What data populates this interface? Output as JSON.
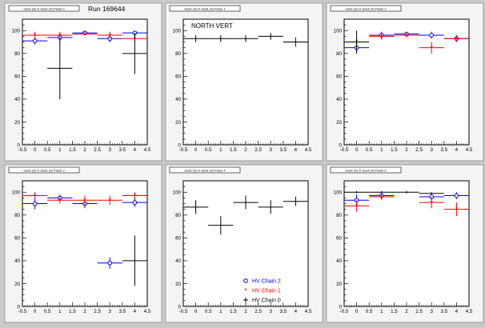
{
  "run_label": "Run 169644",
  "chart_data": [
    {
      "type": "scatter",
      "title": "dow1 (4) O dow1 (4) Panel 0",
      "annotation": "",
      "xlim": [
        -0.5,
        4.5
      ],
      "ylim": [
        0,
        110
      ],
      "xticks": [
        "-0.5",
        "0",
        "0.5",
        "1",
        "1.5",
        "2",
        "2.5",
        "3",
        "3.5",
        "4",
        "4.5"
      ],
      "yticks": [
        "0",
        "20",
        "40",
        "60",
        "80",
        "100"
      ],
      "series": [
        {
          "color": "#0000ff",
          "marker": "circle",
          "points": [
            {
              "x": 0,
              "y": 91,
              "xerr": 0.5,
              "yerr": 3
            },
            {
              "x": 1,
              "y": 94,
              "xerr": 0.5,
              "yerr": 3
            },
            {
              "x": 2,
              "y": 98,
              "xerr": 0.5,
              "yerr": 1
            },
            {
              "x": 3,
              "y": 93,
              "xerr": 0.5,
              "yerr": 3
            },
            {
              "x": 4,
              "y": 98,
              "xerr": 0.5,
              "yerr": 1
            }
          ]
        },
        {
          "color": "#ff0000",
          "marker": "star",
          "points": [
            {
              "x": 0,
              "y": 96,
              "xerr": 0.5,
              "yerr": 3
            },
            {
              "x": 1,
              "y": 96,
              "xerr": 0.5,
              "yerr": 3
            },
            {
              "x": 2,
              "y": 97,
              "xerr": 0.5,
              "yerr": 1
            },
            {
              "x": 3,
              "y": 96,
              "xerr": 0.5,
              "yerr": 3
            },
            {
              "x": 4,
              "y": 93,
              "xerr": 0.5,
              "yerr": 3
            }
          ]
        },
        {
          "color": "#000000",
          "marker": "cross",
          "points": [
            {
              "x": 1,
              "y": 67,
              "xerr": 0.5,
              "yerr": 27
            },
            {
              "x": 4,
              "y": 80,
              "xerr": 0.5,
              "yerr": 18
            }
          ]
        }
      ]
    },
    {
      "type": "scatter",
      "title": "dow1 (4) O dow1 (4) Panel 1",
      "annotation": "NORTH VERT",
      "xlim": [
        -0.5,
        4.5
      ],
      "ylim": [
        0,
        110
      ],
      "xticks": [
        "-0.5",
        "0",
        "0.5",
        "1",
        "1.5",
        "2",
        "2.5",
        "3",
        "3.5",
        "4",
        "4.5"
      ],
      "yticks": [
        "0",
        "20",
        "40",
        "60",
        "80",
        "100"
      ],
      "series": [
        {
          "color": "#000000",
          "marker": "cross",
          "points": [
            {
              "x": 0,
              "y": 93,
              "xerr": 0.5,
              "yerr": 3
            },
            {
              "x": 1,
              "y": 93,
              "xerr": 0.5,
              "yerr": 3
            },
            {
              "x": 2,
              "y": 93,
              "xerr": 0.5,
              "yerr": 3
            },
            {
              "x": 3,
              "y": 95,
              "xerr": 0.5,
              "yerr": 3
            },
            {
              "x": 4,
              "y": 90,
              "xerr": 0.5,
              "yerr": 4
            }
          ]
        }
      ]
    },
    {
      "type": "scatter",
      "title": "dow1 (4) O dow1 (4) Panel 2",
      "annotation": "",
      "xlim": [
        -0.5,
        4.5
      ],
      "ylim": [
        0,
        110
      ],
      "xticks": [
        "-0.5",
        "0",
        "0.5",
        "1",
        "1.5",
        "2",
        "2.5",
        "3",
        "3.5",
        "4",
        "4.5"
      ],
      "yticks": [
        "0",
        "20",
        "40",
        "60",
        "80",
        "100"
      ],
      "series": [
        {
          "color": "#0000ff",
          "marker": "circle",
          "points": [
            {
              "x": 0,
              "y": 85,
              "xerr": 0.5,
              "yerr": 4
            },
            {
              "x": 1,
              "y": 96,
              "xerr": 0.5,
              "yerr": 3
            },
            {
              "x": 2,
              "y": 97,
              "xerr": 0.5,
              "yerr": 2
            },
            {
              "x": 3,
              "y": 96,
              "xerr": 0.5,
              "yerr": 3
            },
            {
              "x": 4,
              "y": 93,
              "xerr": 0.5,
              "yerr": 3
            }
          ]
        },
        {
          "color": "#ff0000",
          "marker": "star",
          "points": [
            {
              "x": 0,
              "y": 90,
              "xerr": 0.5,
              "yerr": 4
            },
            {
              "x": 1,
              "y": 95,
              "xerr": 0.5,
              "yerr": 3
            },
            {
              "x": 2,
              "y": 96,
              "xerr": 0.5,
              "yerr": 2
            },
            {
              "x": 3,
              "y": 85,
              "xerr": 0.5,
              "yerr": 5
            },
            {
              "x": 4,
              "y": 93,
              "xerr": 0.5,
              "yerr": 3
            }
          ]
        },
        {
          "color": "#000000",
          "marker": "cross",
          "points": [
            {
              "x": 0,
              "y": 90,
              "xerr": 0.5,
              "yerr": 10
            }
          ]
        }
      ]
    },
    {
      "type": "scatter",
      "title": "dow1 (4) O dow1 (4) Panel 3",
      "annotation": "",
      "xlim": [
        -0.5,
        4.5
      ],
      "ylim": [
        0,
        110
      ],
      "xticks": [
        "-0.5",
        "0",
        "0.5",
        "1",
        "1.5",
        "2",
        "2.5",
        "3",
        "3.5",
        "4",
        "4.5"
      ],
      "yticks": [
        "0",
        "20",
        "40",
        "60",
        "80",
        "100"
      ],
      "series": [
        {
          "color": "#0000ff",
          "marker": "circle",
          "points": [
            {
              "x": 0,
              "y": 90,
              "xerr": 0.5,
              "yerr": 5
            },
            {
              "x": 1,
              "y": 95,
              "xerr": 0.5,
              "yerr": 3
            },
            {
              "x": 2,
              "y": 90,
              "xerr": 0.5,
              "yerr": 4
            },
            {
              "x": 3,
              "y": 38,
              "xerr": 0.5,
              "yerr": 5
            },
            {
              "x": 4,
              "y": 91,
              "xerr": 0.5,
              "yerr": 4
            }
          ]
        },
        {
          "color": "#ff0000",
          "marker": "star",
          "points": [
            {
              "x": 0,
              "y": 97,
              "xerr": 0.5,
              "yerr": 3
            },
            {
              "x": 1,
              "y": 93,
              "xerr": 0.5,
              "yerr": 3
            },
            {
              "x": 2,
              "y": 93,
              "xerr": 0.5,
              "yerr": 4
            },
            {
              "x": 3,
              "y": 93,
              "xerr": 0.5,
              "yerr": 4
            },
            {
              "x": 4,
              "y": 97,
              "xerr": 0.5,
              "yerr": 3
            }
          ]
        },
        {
          "color": "#000000",
          "marker": "cross",
          "points": [
            {
              "x": 4,
              "y": 40,
              "xerr": 0.5,
              "yerr": 22
            }
          ]
        }
      ]
    },
    {
      "type": "scatter",
      "title": "dow1 (4) O dow1 (4) Panel 4",
      "annotation": "",
      "xlim": [
        -0.5,
        4.5
      ],
      "ylim": [
        0,
        110
      ],
      "xticks": [
        "-0.5",
        "0",
        "0.5",
        "1",
        "1.5",
        "2",
        "2.5",
        "3",
        "3.5",
        "4",
        "4.5"
      ],
      "yticks": [
        "0",
        "20",
        "40",
        "60",
        "80",
        "100"
      ],
      "series": [
        {
          "color": "#000000",
          "marker": "cross",
          "points": [
            {
              "x": 0,
              "y": 87,
              "xerr": 0.5,
              "yerr": 6
            },
            {
              "x": 1,
              "y": 71,
              "xerr": 0.5,
              "yerr": 8
            },
            {
              "x": 2,
              "y": 91,
              "xerr": 0.5,
              "yerr": 6
            },
            {
              "x": 3,
              "y": 87,
              "xerr": 0.5,
              "yerr": 6
            },
            {
              "x": 4,
              "y": 92,
              "xerr": 0.5,
              "yerr": 4
            }
          ]
        }
      ],
      "legend": {
        "placement": "bottom-right",
        "entries": [
          {
            "label": "HV Chain 2",
            "color": "#0000ff",
            "marker": "circle"
          },
          {
            "label": "HV Chain 1",
            "color": "#ff0000",
            "marker": "star"
          },
          {
            "label": "HV Chain 0",
            "color": "#000000",
            "marker": "cross"
          }
        ]
      }
    },
    {
      "type": "scatter",
      "title": "dow1 (4) O dow1 (4) Panel 5",
      "annotation": "",
      "xlim": [
        -0.5,
        4.5
      ],
      "ylim": [
        0,
        110
      ],
      "xticks": [
        "-0.5",
        "0",
        "0.5",
        "1",
        "1.5",
        "2",
        "2.5",
        "3",
        "3.5",
        "4",
        "4.5"
      ],
      "yticks": [
        "0",
        "20",
        "40",
        "60",
        "80",
        "100"
      ],
      "series": [
        {
          "color": "#0000ff",
          "marker": "circle",
          "points": [
            {
              "x": 0,
              "y": 93,
              "xerr": 0.5,
              "yerr": 5
            },
            {
              "x": 1,
              "y": 97,
              "xerr": 0.5,
              "yerr": 3
            },
            {
              "x": 3,
              "y": 96,
              "xerr": 0.5,
              "yerr": 3
            },
            {
              "x": 4,
              "y": 97,
              "xerr": 0.5,
              "yerr": 3
            }
          ]
        },
        {
          "color": "#ff0000",
          "marker": "star",
          "points": [
            {
              "x": 0,
              "y": 88,
              "xerr": 0.5,
              "yerr": 5
            },
            {
              "x": 1,
              "y": 96,
              "xerr": 0.5,
              "yerr": 3
            },
            {
              "x": 3,
              "y": 91,
              "xerr": 0.5,
              "yerr": 5
            },
            {
              "x": 4,
              "y": 85,
              "xerr": 0.5,
              "yerr": 6
            }
          ]
        },
        {
          "color": "#000000",
          "marker": "cross",
          "points": [
            {
              "x": 0,
              "y": 100,
              "xerr": 0.5,
              "yerr": 1
            },
            {
              "x": 1,
              "y": 100,
              "xerr": 0.5,
              "yerr": 1
            },
            {
              "x": 2,
              "y": 100,
              "xerr": 0.5,
              "yerr": 1
            },
            {
              "x": 3,
              "y": 99,
              "xerr": 0.5,
              "yerr": 1
            }
          ]
        }
      ]
    }
  ]
}
